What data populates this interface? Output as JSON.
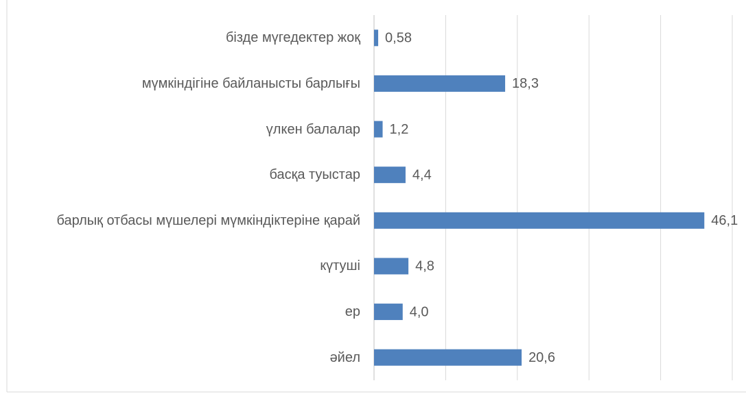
{
  "chart_data": {
    "type": "barh",
    "categories": [
      "бізде мүгедектер жоқ",
      "мүмкіндігіне байланысты барлығы",
      "үлкен балалар",
      "басқа туыстар",
      "барлық отбасы мүшелері мүмкіндіктеріне қарай",
      "күтуші",
      "ер",
      "әйел"
    ],
    "values": [
      0.58,
      18.3,
      1.2,
      4.4,
      46.1,
      4.8,
      4.0,
      20.6
    ],
    "value_labels": [
      "0,58",
      "18,3",
      "1,2",
      "4,4",
      "46,1",
      "4,8",
      "4,0",
      "20,6"
    ],
    "color": "#4f81bd",
    "xlim": [
      0,
      50
    ],
    "xticks": [
      0,
      10,
      20,
      30,
      40,
      50
    ],
    "grid": true
  }
}
